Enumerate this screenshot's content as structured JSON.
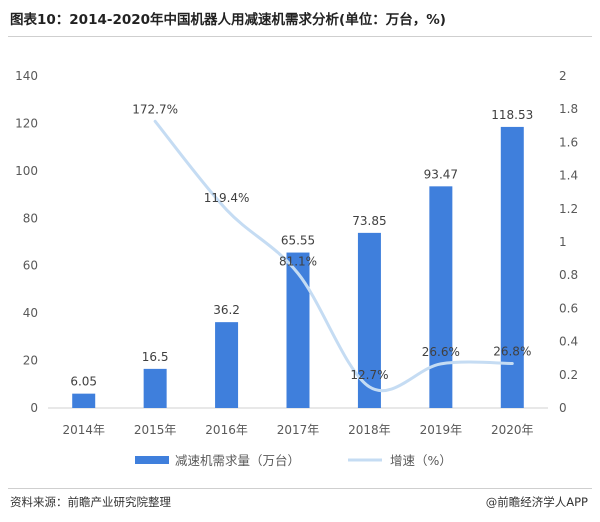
{
  "title": "图表10：2014-2020年中国机器人用减速机需求分析(单位：万台，%)",
  "source": "资料来源：前瞻产业研究院整理",
  "credit": "@前瞻经济学人APP",
  "chart_data": {
    "type": "bar",
    "categories": [
      "2014年",
      "2015年",
      "2016年",
      "2017年",
      "2018年",
      "2019年",
      "2020年"
    ],
    "series": [
      {
        "name": "减速机需求量（万台）",
        "type": "bar",
        "axis": "left",
        "color": "#3f7fdc",
        "values": [
          6.05,
          16.5,
          36.2,
          65.55,
          73.85,
          93.47,
          118.53
        ],
        "labels": [
          "6.05",
          "16.5",
          "36.2",
          "65.55",
          "73.85",
          "93.47",
          "118.53"
        ]
      },
      {
        "name": "增速（%）",
        "type": "line",
        "axis": "right",
        "color": "#c5dcf3",
        "values": [
          null,
          1.727,
          1.194,
          0.811,
          0.127,
          0.266,
          0.268
        ],
        "labels": [
          "",
          "172.7%",
          "119.4%",
          "81.1%",
          "12.7%",
          "26.6%",
          "26.8%"
        ]
      }
    ],
    "y_left": {
      "ylim": [
        0,
        140
      ],
      "ticks": [
        "0",
        "20",
        "40",
        "60",
        "80",
        "100",
        "120",
        "140"
      ]
    },
    "y_right": {
      "ylim": [
        0,
        2
      ],
      "ticks": [
        "0",
        "0.2",
        "0.4",
        "0.6",
        "0.8",
        "1",
        "1.2",
        "1.4",
        "1.6",
        "1.8",
        "2"
      ]
    },
    "grid": false,
    "legend_position": "bottom"
  }
}
